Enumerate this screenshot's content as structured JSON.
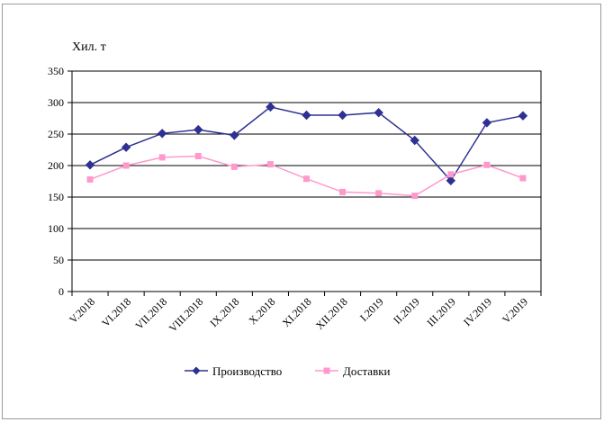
{
  "chart_data": {
    "type": "line",
    "title": "",
    "xlabel": "",
    "ylabel": "Хил. т",
    "categories": [
      "V.2018",
      "VI.2018",
      "VII.2018",
      "VIII.2018",
      "IX.2018",
      "X.2018",
      "XI.2018",
      "XII.2018",
      "I.2019",
      "II.2019",
      "III.2019",
      "IV.2019",
      "V.2019"
    ],
    "yticks": [
      "0",
      "50",
      "100",
      "150",
      "200",
      "250",
      "300",
      "350"
    ],
    "ylim": [
      0,
      350
    ],
    "grid": true,
    "legend_position": "bottom",
    "series": [
      {
        "name": "Производство",
        "color": "#2e3192",
        "marker": "diamond",
        "values": [
          201,
          229,
          251,
          257,
          248,
          293,
          280,
          280,
          284,
          240,
          176,
          268,
          279
        ]
      },
      {
        "name": "Доставки",
        "color": "#ff99cc",
        "marker": "square",
        "values": [
          178,
          200,
          213,
          215,
          198,
          202,
          179,
          158,
          156,
          152,
          186,
          201,
          180
        ]
      }
    ]
  }
}
